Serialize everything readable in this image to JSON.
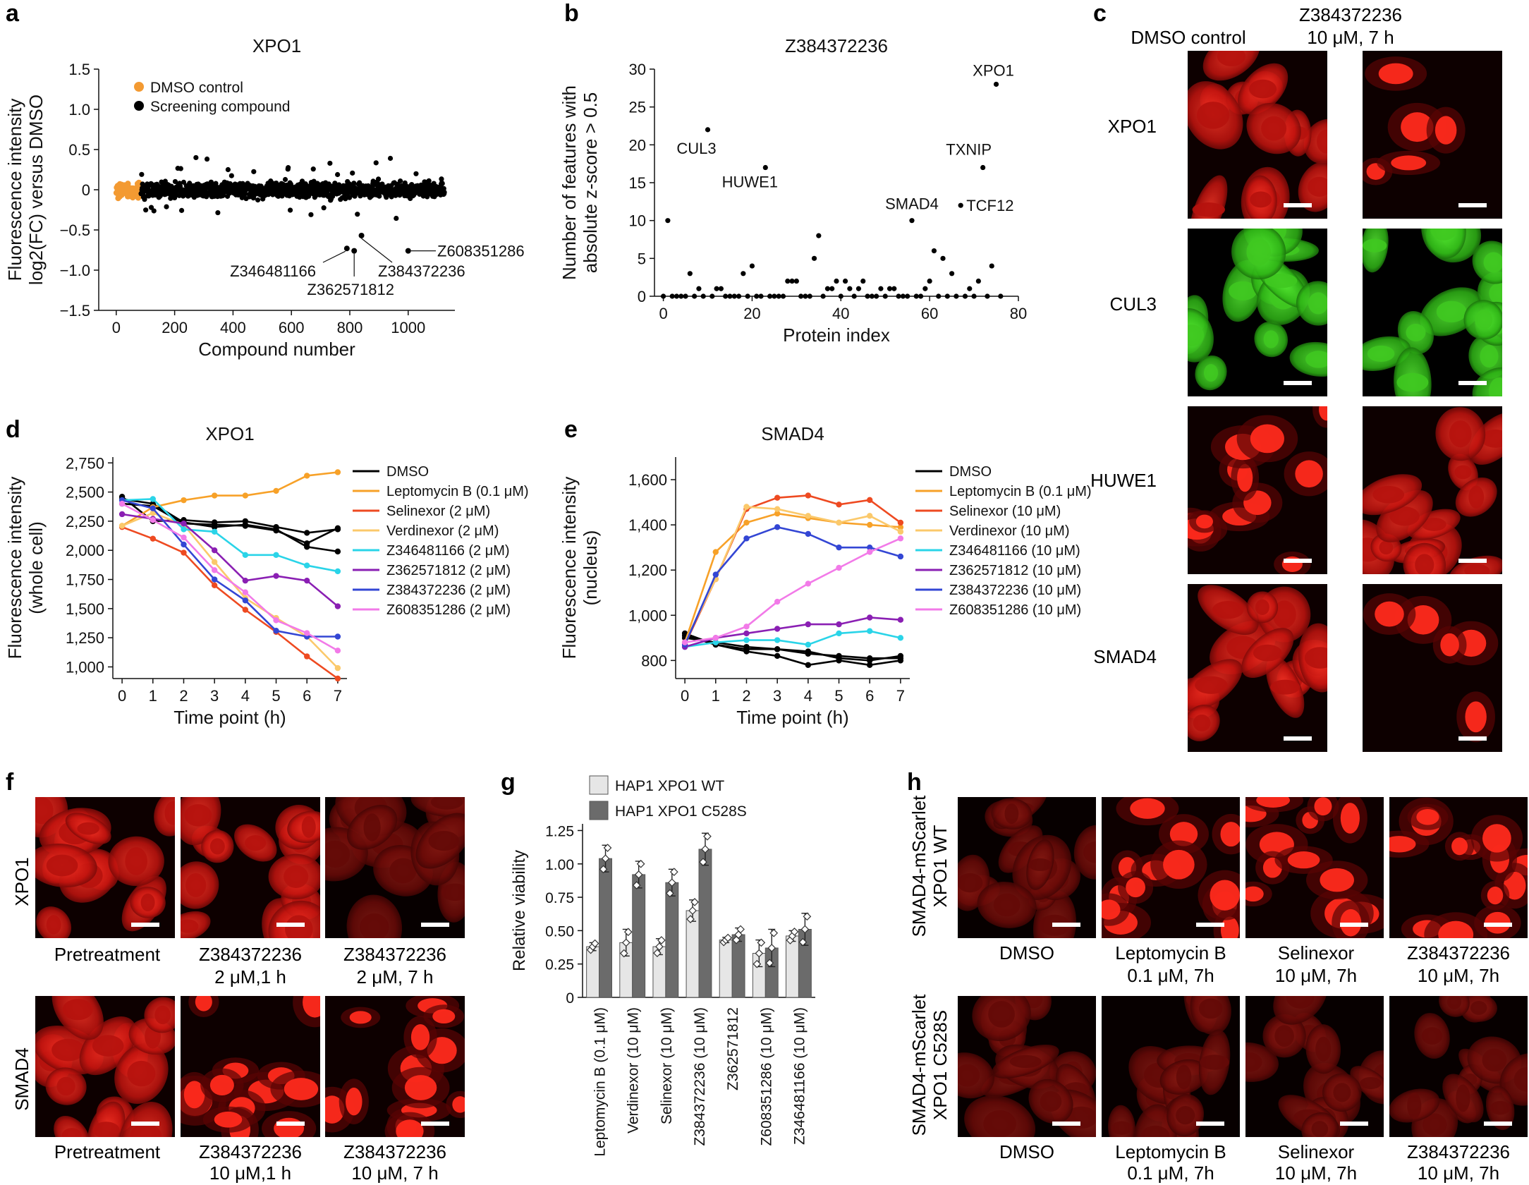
{
  "panels": {
    "a": "a",
    "b": "b",
    "c": "c",
    "d": "d",
    "e": "e",
    "f": "f",
    "g": "g",
    "h": "h"
  },
  "colors": {
    "dmso_orange": "#f39a32",
    "black": "#000000",
    "legend_d": [
      "#000000",
      "#f7a128",
      "#ee4a21",
      "#fbc96b",
      "#2ad4e8",
      "#8a1fb3",
      "#3346d4",
      "#f27ae8"
    ],
    "wt_bar": "#e6e6e6",
    "c528s_bar": "#6b6b6b",
    "red_cell": "#e3211b",
    "green_cell": "#33cc1a"
  },
  "chart_data": [
    {
      "id": "a",
      "type": "scatter",
      "title": "XPO1",
      "xlabel": "Compound number",
      "ylabel_line1": "Fluorescence intensity",
      "ylabel_line2": "log2(FC) versus DMSO",
      "xlim": [
        -60,
        1160
      ],
      "ylim": [
        -1.5,
        1.5
      ],
      "xticks": [
        0,
        200,
        400,
        600,
        800,
        1000
      ],
      "yticks": [
        -1.5,
        -1.0,
        -0.5,
        0,
        0.5,
        1.0,
        1.5
      ],
      "ytick_labels": [
        "−1.5",
        "−1.0",
        "−0.5",
        "0",
        "0.5",
        "1.0",
        "1.5"
      ],
      "legend": [
        "DMSO control",
        "Screening compound"
      ],
      "n_dmso": 80,
      "n_compounds": 1040,
      "compound_range": [
        85,
        1125
      ],
      "highlighted": [
        {
          "label": "Z346481166",
          "x": 790,
          "y": -0.73
        },
        {
          "label": "Z362571812",
          "x": 815,
          "y": -0.76
        },
        {
          "label": "Z384372236",
          "x": 840,
          "y": -0.57
        },
        {
          "label": "Z608351286",
          "x": 1000,
          "y": -0.76
        }
      ]
    },
    {
      "id": "b",
      "type": "scatter",
      "title": "Z384372236",
      "xlabel": "Protein index",
      "ylabel_line1": "Number of features with",
      "ylabel_line2": "absolute z-score > 0.5",
      "xlim": [
        -2,
        80
      ],
      "ylim": [
        0,
        30
      ],
      "xticks": [
        0,
        20,
        40,
        60,
        80
      ],
      "yticks": [
        0,
        5,
        10,
        15,
        20,
        25,
        30
      ],
      "points": [
        [
          0,
          0
        ],
        [
          1,
          10
        ],
        [
          2,
          0
        ],
        [
          3,
          0
        ],
        [
          4,
          0
        ],
        [
          5,
          0
        ],
        [
          6,
          3
        ],
        [
          7,
          0
        ],
        [
          8,
          1
        ],
        [
          9,
          0
        ],
        [
          10,
          22
        ],
        [
          11,
          0
        ],
        [
          12,
          1
        ],
        [
          13,
          1
        ],
        [
          14,
          0
        ],
        [
          15,
          0
        ],
        [
          16,
          0
        ],
        [
          17,
          0
        ],
        [
          18,
          3
        ],
        [
          19,
          0
        ],
        [
          20,
          4
        ],
        [
          21,
          0
        ],
        [
          22,
          0
        ],
        [
          23,
          17
        ],
        [
          24,
          0
        ],
        [
          25,
          0
        ],
        [
          26,
          0
        ],
        [
          27,
          0
        ],
        [
          28,
          2
        ],
        [
          29,
          2
        ],
        [
          30,
          2
        ],
        [
          31,
          0
        ],
        [
          32,
          0
        ],
        [
          33,
          0
        ],
        [
          34,
          5
        ],
        [
          35,
          8
        ],
        [
          36,
          0
        ],
        [
          37,
          1
        ],
        [
          38,
          1
        ],
        [
          39,
          2
        ],
        [
          40,
          0
        ],
        [
          41,
          2
        ],
        [
          42,
          1
        ],
        [
          43,
          0
        ],
        [
          44,
          1
        ],
        [
          45,
          2
        ],
        [
          46,
          0
        ],
        [
          47,
          0
        ],
        [
          48,
          0
        ],
        [
          49,
          1
        ],
        [
          50,
          0
        ],
        [
          51,
          1
        ],
        [
          52,
          1
        ],
        [
          53,
          0
        ],
        [
          54,
          0
        ],
        [
          55,
          0
        ],
        [
          56,
          10
        ],
        [
          57,
          0
        ],
        [
          58,
          0
        ],
        [
          59,
          1
        ],
        [
          60,
          2
        ],
        [
          61,
          6
        ],
        [
          62,
          0
        ],
        [
          63,
          5
        ],
        [
          64,
          0
        ],
        [
          65,
          3
        ],
        [
          66,
          0
        ],
        [
          67,
          12
        ],
        [
          68,
          0
        ],
        [
          69,
          1
        ],
        [
          70,
          0
        ],
        [
          71,
          2
        ],
        [
          72,
          17
        ],
        [
          73,
          0
        ],
        [
          74,
          4
        ],
        [
          75,
          28
        ],
        [
          76,
          0
        ]
      ],
      "annotations": [
        {
          "label": "XPO1",
          "x": 75,
          "y": 28
        },
        {
          "label": "CUL3",
          "x": 10,
          "y": 22
        },
        {
          "label": "TXNIP",
          "x": 72,
          "y": 17
        },
        {
          "label": "HUWE1",
          "x": 23,
          "y": 17
        },
        {
          "label": "TCF12",
          "x": 67,
          "y": 12
        },
        {
          "label": "SMAD4",
          "x": 56,
          "y": 10
        }
      ]
    },
    {
      "id": "d",
      "type": "line",
      "title": "XPO1",
      "xlabel": "Time point (h)",
      "ylabel_line1": "Fluorescence intensity",
      "ylabel_line2": "(whole cell)",
      "x": [
        0,
        1,
        2,
        3,
        4,
        5,
        6,
        7
      ],
      "xlim": [
        -0.3,
        7.3
      ],
      "ylim": [
        900,
        2800
      ],
      "yticks": [
        1000,
        1250,
        1500,
        1750,
        2000,
        2250,
        2500,
        2750
      ],
      "ytick_labels": [
        "1,000",
        "1,250",
        "1,500",
        "1,750",
        "2,000",
        "2,250",
        "2,500",
        "2,750"
      ],
      "series": [
        {
          "name": "DMSO",
          "color": "#000000",
          "values": [
            2440,
            2400,
            2240,
            2200,
            2220,
            2180,
            2030,
            1990
          ]
        },
        {
          "name": "DMSO",
          "color": "#000000",
          "values": [
            2460,
            2250,
            2260,
            2240,
            2250,
            2200,
            2150,
            2180
          ],
          "legend": false
        },
        {
          "name": "DMSO",
          "color": "#000000",
          "values": [
            2400,
            2380,
            2230,
            2220,
            2210,
            2170,
            2060,
            2190
          ],
          "legend": false
        },
        {
          "name": "Leptomycin B (0.1 μM)",
          "color": "#f7a128",
          "values": [
            2210,
            2370,
            2430,
            2470,
            2470,
            2510,
            2640,
            2670
          ]
        },
        {
          "name": "Selinexor (2 μM)",
          "color": "#ee4a21",
          "values": [
            2200,
            2100,
            1980,
            1700,
            1490,
            1300,
            1090,
            900
          ]
        },
        {
          "name": "Verdinexor (2 μM)",
          "color": "#fbc96b",
          "values": [
            2210,
            2320,
            2220,
            1900,
            1590,
            1420,
            1260,
            990
          ]
        },
        {
          "name": "Z346481166 (2 μM)",
          "color": "#2ad4e8",
          "values": [
            2430,
            2440,
            2180,
            2160,
            1960,
            1960,
            1870,
            1820
          ]
        },
        {
          "name": "Z362571812 (2 μM)",
          "color": "#8a1fb3",
          "values": [
            2310,
            2270,
            2230,
            2000,
            1740,
            1780,
            1740,
            1520
          ]
        },
        {
          "name": "Z384372236 (2 μM)",
          "color": "#3346d4",
          "values": [
            2430,
            2360,
            2050,
            1750,
            1570,
            1310,
            1260,
            1260
          ]
        },
        {
          "name": "Z608351286 (2 μM)",
          "color": "#f27ae8",
          "values": [
            2400,
            2260,
            2110,
            1830,
            1640,
            1400,
            1290,
            1140
          ]
        }
      ]
    },
    {
      "id": "e",
      "type": "line",
      "title": "SMAD4",
      "xlabel": "Time point (h)",
      "ylabel_line1": "Fluorescence intensity",
      "ylabel_line2": "(nucleus)",
      "x": [
        0,
        1,
        2,
        3,
        4,
        5,
        6,
        7
      ],
      "xlim": [
        -0.3,
        7.3
      ],
      "ylim": [
        720,
        1700
      ],
      "yticks": [
        800,
        1000,
        1200,
        1400,
        1600
      ],
      "ytick_labels": [
        "800",
        "1,000",
        "1,200",
        "1,400",
        "1,600"
      ],
      "series": [
        {
          "name": "DMSO",
          "color": "#000000",
          "values": [
            920,
            870,
            840,
            820,
            780,
            800,
            780,
            800
          ]
        },
        {
          "name": "DMSO",
          "color": "#000000",
          "values": [
            900,
            880,
            860,
            850,
            830,
            820,
            810,
            810
          ],
          "legend": false
        },
        {
          "name": "DMSO",
          "color": "#000000",
          "values": [
            910,
            870,
            850,
            850,
            840,
            810,
            800,
            820
          ],
          "legend": false
        },
        {
          "name": "Leptomycin B (0.1 μM)",
          "color": "#f7a128",
          "values": [
            880,
            1280,
            1410,
            1450,
            1430,
            1410,
            1400,
            1390
          ]
        },
        {
          "name": "Selinexor (10 μM)",
          "color": "#ee4a21",
          "values": [
            870,
            1160,
            1470,
            1520,
            1530,
            1490,
            1510,
            1410
          ]
        },
        {
          "name": "Verdinexor (10 μM)",
          "color": "#fbc96b",
          "values": [
            880,
            1160,
            1480,
            1470,
            1440,
            1410,
            1440,
            1370
          ]
        },
        {
          "name": "Z346481166 (10 μM)",
          "color": "#2ad4e8",
          "values": [
            860,
            880,
            890,
            890,
            870,
            920,
            930,
            900
          ]
        },
        {
          "name": "Z362571812 (10 μM)",
          "color": "#8a1fb3",
          "values": [
            860,
            900,
            920,
            940,
            960,
            960,
            990,
            980
          ]
        },
        {
          "name": "Z384372236 (10 μM)",
          "color": "#3346d4",
          "values": [
            870,
            1180,
            1340,
            1390,
            1360,
            1300,
            1300,
            1260
          ]
        },
        {
          "name": "Z608351286 (10 μM)",
          "color": "#f27ae8",
          "values": [
            880,
            900,
            950,
            1060,
            1140,
            1210,
            1280,
            1340
          ]
        }
      ]
    },
    {
      "id": "g",
      "type": "bar",
      "ylabel": "Relative viability",
      "ylim": [
        0,
        1.3
      ],
      "yticks": [
        0,
        0.25,
        0.5,
        0.75,
        1.0,
        1.25
      ],
      "ytick_labels": [
        "0",
        "0.25",
        "0.50",
        "0.75",
        "1.00",
        "1.25"
      ],
      "categories": [
        "Leptomycin B (0.1 μM)",
        "Verdinexor (10 μM)",
        "Selinexor (10 μM)",
        "Z384372236 (10 μM)",
        "Z362571812",
        "Z608351286 (10 μM)",
        "Z346481166 (10 μM)"
      ],
      "series": [
        {
          "name": "HAP1 XPO1 WT",
          "color": "#e6e6e6",
          "values": [
            0.38,
            0.41,
            0.38,
            0.65,
            0.43,
            0.33,
            0.46
          ],
          "errors": [
            0.03,
            0.1,
            0.06,
            0.08,
            0.02,
            0.1,
            0.04
          ]
        },
        {
          "name": "HAP1 XPO1 C528S",
          "color": "#6b6b6b",
          "values": [
            1.04,
            0.92,
            0.86,
            1.11,
            0.47,
            0.37,
            0.51
          ],
          "errors": [
            0.1,
            0.1,
            0.1,
            0.12,
            0.05,
            0.14,
            0.12
          ]
        }
      ]
    }
  ],
  "panel_c": {
    "col1": "DMSO control",
    "col2_line1": "Z384372236",
    "col2_line2": "10 μM, 7 h",
    "rows": [
      "XPO1",
      "CUL3",
      "HUWE1",
      "SMAD4"
    ]
  },
  "panel_f": {
    "rows": [
      "XPO1",
      "SMAD4"
    ],
    "top_captions": [
      {
        "l1": "Pretreatment",
        "l2": ""
      },
      {
        "l1": "Z384372236",
        "l2": "2 μM,1 h"
      },
      {
        "l1": "Z384372236",
        "l2": "2 μM, 7 h"
      }
    ],
    "bottom_captions": [
      {
        "l1": "Pretreatment",
        "l2": ""
      },
      {
        "l1": "Z384372236",
        "l2": "10 μM,1 h"
      },
      {
        "l1": "Z384372236",
        "l2": "10 μM, 7 h"
      }
    ]
  },
  "panel_h": {
    "row1_l1": "SMAD4-mScarlet",
    "row1_l2": "XPO1 WT",
    "row2_l1": "SMAD4-mScarlet",
    "row2_l2": "XPO1 C528S",
    "captions": [
      {
        "l1": "DMSO",
        "l2": ""
      },
      {
        "l1": "Leptomycin B",
        "l2": "0.1 μM, 7h"
      },
      {
        "l1": "Selinexor",
        "l2": "10 μM, 7h"
      },
      {
        "l1": "Z384372236",
        "l2": "10 μM, 7h"
      }
    ]
  }
}
